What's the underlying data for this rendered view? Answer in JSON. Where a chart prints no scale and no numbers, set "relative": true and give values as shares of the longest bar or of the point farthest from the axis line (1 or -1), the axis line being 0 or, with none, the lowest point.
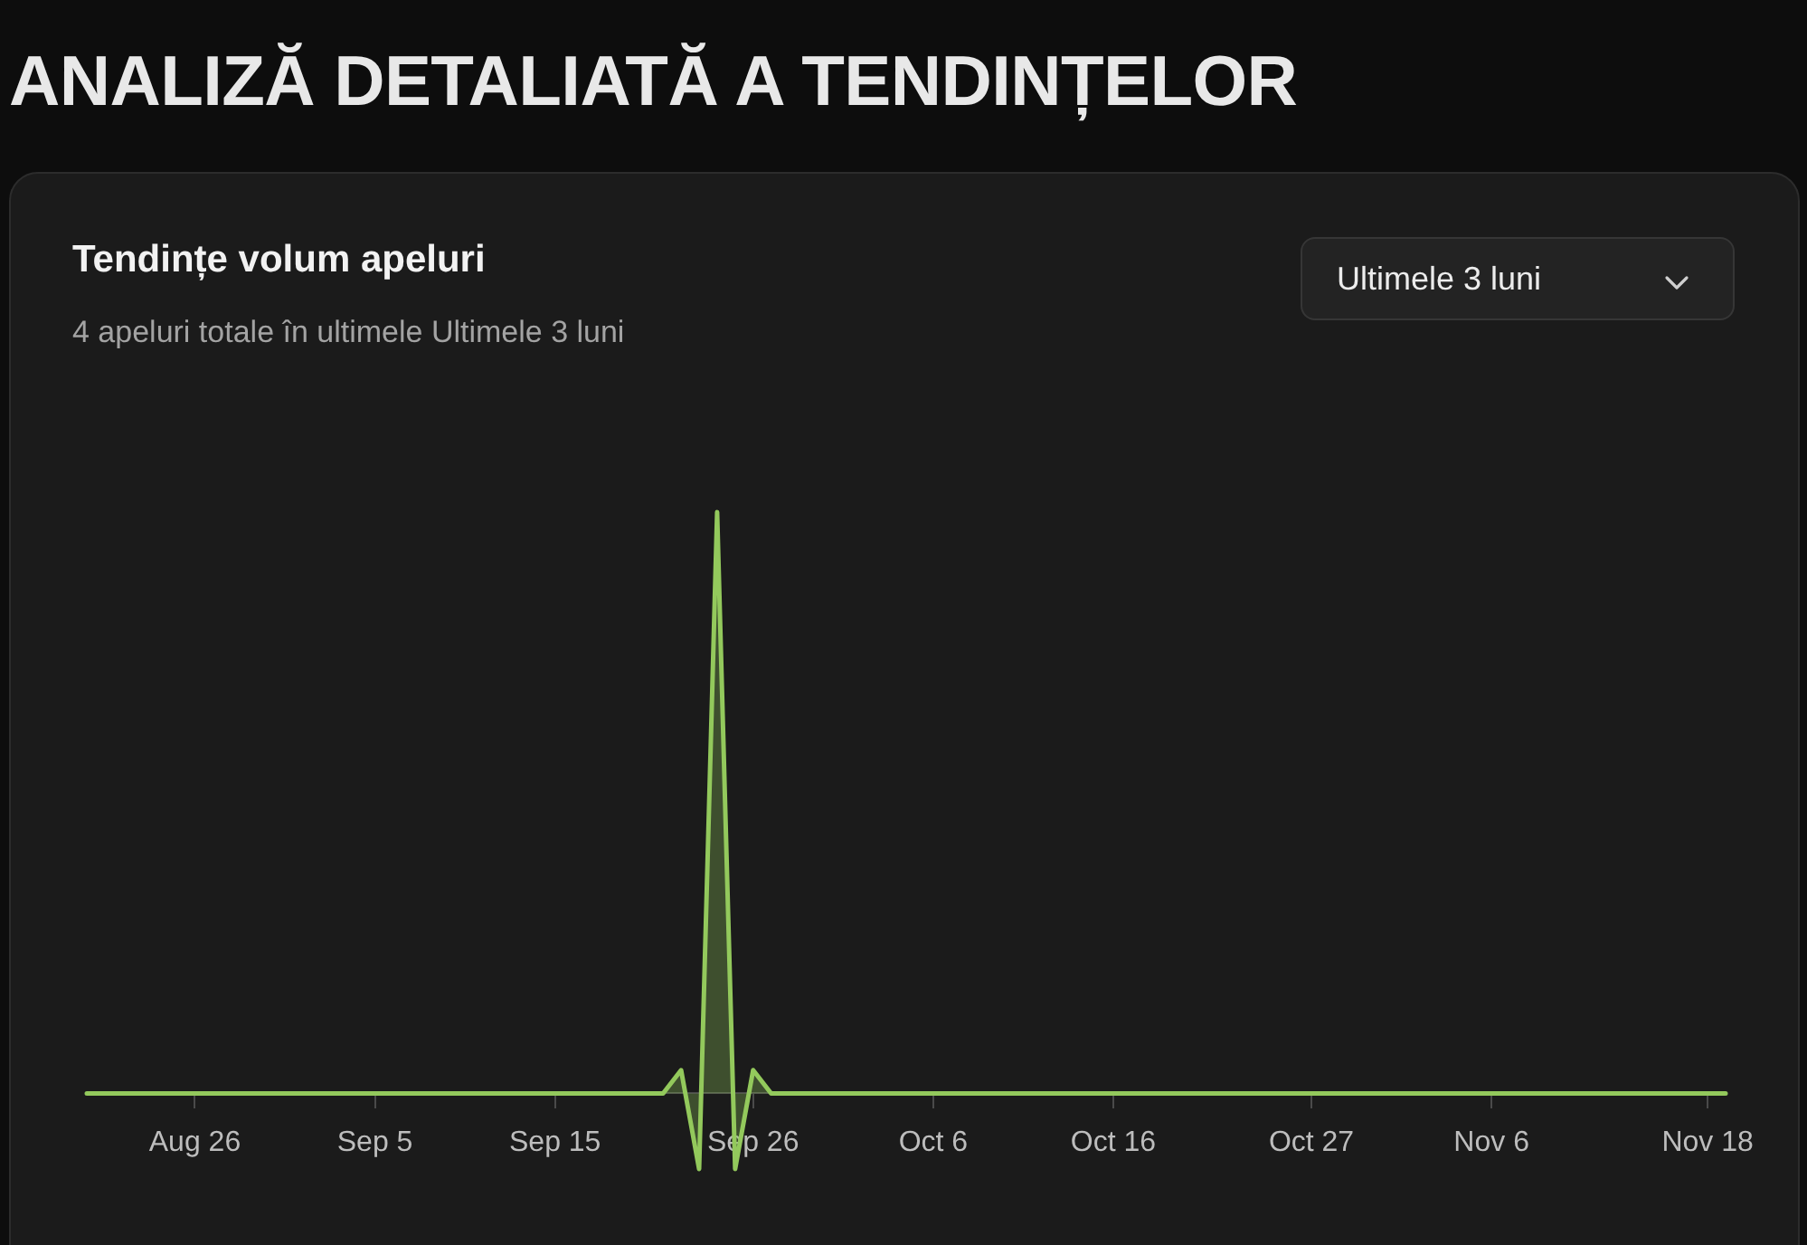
{
  "chart_data": {
    "type": "area",
    "title": "ANALIZĂ DETALIATĂ A TENDINȚELOR",
    "subtitle": "Tendințe volum apeluri",
    "annotations": [
      "4 apeluri totale în ultimele Ultimele 3 luni",
      "Ultimele 3 luni"
    ],
    "relative": true,
    "x": [
      "--08-20",
      "--09-21",
      "--09-22",
      "--09-23",
      "--09-24",
      "--09-25",
      "--09-26",
      "--09-27",
      "--11-19"
    ],
    "values": [
      0,
      0,
      0.04,
      -0.13,
      1,
      -0.13,
      0.04,
      0,
      0
    ],
    "color": "#93c95c",
    "xlim": [
      "--08-20",
      "--11-19"
    ],
    "xticks": [
      {
        "value": "--08-26",
        "label": "Aug 26"
      },
      {
        "value": "--09-05",
        "label": "Sep 5"
      },
      {
        "value": "--09-15",
        "label": "Sep 15"
      },
      {
        "value": "--09-26",
        "label": "Sep 26"
      },
      {
        "value": "--10-06",
        "label": "Oct 6"
      },
      {
        "value": "--10-16",
        "label": "Oct 16"
      },
      {
        "value": "--10-27",
        "label": "Oct 27"
      },
      {
        "value": "--11-06",
        "label": "Nov 6"
      },
      {
        "value": "--11-18",
        "label": "Nov 18"
      }
    ]
  }
}
